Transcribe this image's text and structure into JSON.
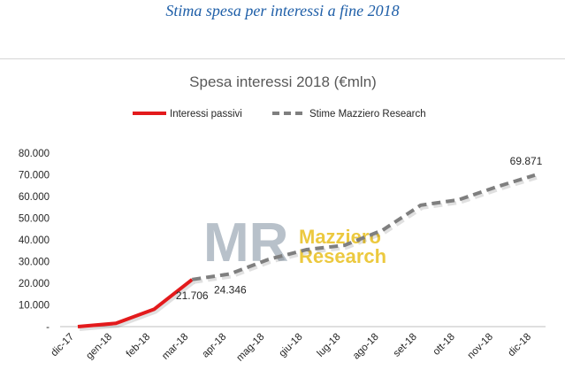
{
  "heading": "Stima spesa per interessi a fine 2018",
  "watermark": {
    "mark": "MR",
    "line1": "Mazziero",
    "line2": "Research"
  },
  "colors": {
    "actual": "#e31a1c",
    "forecast": "#7f7f7f",
    "heading": "#1f5fa8"
  },
  "chart_data": {
    "type": "line",
    "title": "Spesa interessi 2018 (€mln)",
    "categories": [
      "dic-17",
      "gen-18",
      "feb-18",
      "mar-18",
      "apr-18",
      "mag-18",
      "giu-18",
      "lug-18",
      "ago-18",
      "set-18",
      "ott-18",
      "nov-18",
      "dic-18"
    ],
    "y_ticks": [
      "-",
      "10.000",
      "20.000",
      "30.000",
      "40.000",
      "50.000",
      "60.000",
      "70.000",
      "80.000"
    ],
    "ylim": [
      0,
      80000
    ],
    "grid": false,
    "legend_position": "top",
    "series": [
      {
        "name": "Interessi passivi",
        "style": "solid",
        "values": [
          0,
          1500,
          8000,
          21706,
          null,
          null,
          null,
          null,
          null,
          null,
          null,
          null,
          null
        ]
      },
      {
        "name": "Stime Mazziero Research",
        "style": "dashed",
        "values": [
          null,
          null,
          null,
          21706,
          24346,
          31000,
          35500,
          37500,
          44500,
          56000,
          58500,
          64500,
          69871
        ]
      }
    ],
    "data_labels": [
      {
        "index": 3,
        "text": "21.706"
      },
      {
        "index": 4,
        "text": "24.346"
      },
      {
        "index": 12,
        "text": "69.871"
      }
    ]
  }
}
